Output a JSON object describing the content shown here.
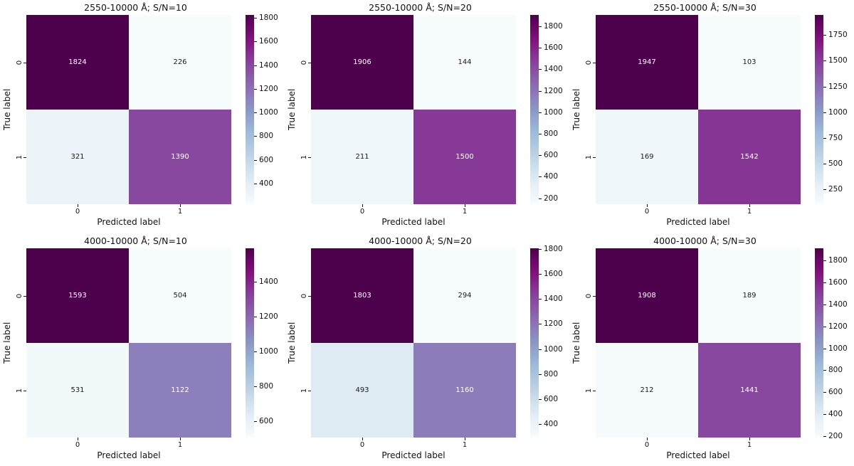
{
  "figure": {
    "background": "#ffffff",
    "colormap_name": "BuPu",
    "annotation_light_text": "#ffffff",
    "annotation_dark_text": "#1a1a1a"
  },
  "colormap_stops": [
    "#f7fcfd",
    "#e0ecf4",
    "#bfd3e6",
    "#9ebcda",
    "#8c96c6",
    "#8c6bb1",
    "#88419d",
    "#810f7c",
    "#4d004b"
  ],
  "chart_data": [
    {
      "type": "heatmap",
      "title": "2550-10000 Å; S/N=10",
      "xlabel": "Predicted label",
      "ylabel": "True label",
      "x_ticklabels": [
        "0",
        "1"
      ],
      "y_ticklabels": [
        "0",
        "1"
      ],
      "matrix": [
        [
          1824,
          226
        ],
        [
          321,
          1390
        ]
      ],
      "vmin": 226,
      "vmax": 1824,
      "colorbar_ticks": [
        1800,
        1600,
        1400,
        1200,
        1000,
        800,
        600,
        400
      ],
      "legend_position": "right-colorbar",
      "grid": false
    },
    {
      "type": "heatmap",
      "title": "2550-10000 Å; S/N=20",
      "xlabel": "Predicted label",
      "ylabel": "True label",
      "x_ticklabels": [
        "0",
        "1"
      ],
      "y_ticklabels": [
        "0",
        "1"
      ],
      "matrix": [
        [
          1906,
          144
        ],
        [
          211,
          1500
        ]
      ],
      "vmin": 144,
      "vmax": 1906,
      "colorbar_ticks": [
        1800,
        1600,
        1400,
        1200,
        1000,
        800,
        600,
        400,
        200
      ],
      "legend_position": "right-colorbar",
      "grid": false
    },
    {
      "type": "heatmap",
      "title": "2550-10000 Å; S/N=30",
      "xlabel": "Predicted label",
      "ylabel": "True label",
      "x_ticklabels": [
        "0",
        "1"
      ],
      "y_ticklabels": [
        "0",
        "1"
      ],
      "matrix": [
        [
          1947,
          103
        ],
        [
          169,
          1542
        ]
      ],
      "vmin": 103,
      "vmax": 1947,
      "colorbar_ticks": [
        1750,
        1500,
        1250,
        1000,
        750,
        500,
        250
      ],
      "legend_position": "right-colorbar",
      "grid": false
    },
    {
      "type": "heatmap",
      "title": "4000-10000 Å; S/N=10",
      "xlabel": "Predicted label",
      "ylabel": "True label",
      "x_ticklabels": [
        "0",
        "1"
      ],
      "y_ticklabels": [
        "0",
        "1"
      ],
      "matrix": [
        [
          1593,
          504
        ],
        [
          531,
          1122
        ]
      ],
      "vmin": 504,
      "vmax": 1593,
      "colorbar_ticks": [
        1400,
        1200,
        1000,
        800,
        600
      ],
      "legend_position": "right-colorbar",
      "grid": false
    },
    {
      "type": "heatmap",
      "title": "4000-10000 Å; S/N=20",
      "xlabel": "Predicted label",
      "ylabel": "True label",
      "x_ticklabels": [
        "0",
        "1"
      ],
      "y_ticklabels": [
        "0",
        "1"
      ],
      "matrix": [
        [
          1803,
          294
        ],
        [
          493,
          1160
        ]
      ],
      "vmin": 294,
      "vmax": 1803,
      "colorbar_ticks": [
        1800,
        1600,
        1400,
        1200,
        1000,
        800,
        600,
        400
      ],
      "legend_position": "right-colorbar",
      "grid": false
    },
    {
      "type": "heatmap",
      "title": "4000-10000 Å; S/N=30",
      "xlabel": "Predicted label",
      "ylabel": "True label",
      "x_ticklabels": [
        "0",
        "1"
      ],
      "y_ticklabels": [
        "0",
        "1"
      ],
      "matrix": [
        [
          1908,
          189
        ],
        [
          212,
          1441
        ]
      ],
      "vmin": 189,
      "vmax": 1908,
      "colorbar_ticks": [
        1800,
        1600,
        1400,
        1200,
        1000,
        800,
        600,
        400,
        200
      ],
      "legend_position": "right-colorbar",
      "grid": false
    }
  ]
}
